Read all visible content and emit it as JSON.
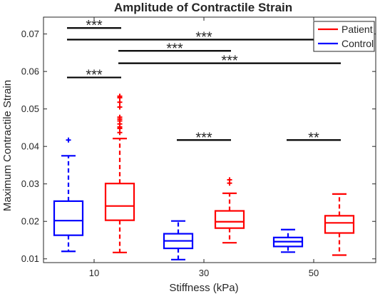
{
  "chart_data": {
    "type": "box",
    "title": "Amplitude of Contractile Strain",
    "xlabel": "Stiffness (kPa)",
    "ylabel": "Maximum Contractile Strain",
    "ylim": [
      0.009,
      0.0745
    ],
    "yticks": [
      "0.01",
      "0.02",
      "0.03",
      "0.04",
      "0.05",
      "0.06",
      "0.07"
    ],
    "yvalues": [
      0.01,
      0.02,
      0.03,
      0.04,
      0.05,
      0.06,
      0.07
    ],
    "categories": [
      "10",
      "30",
      "50"
    ],
    "legend": {
      "position": "top-right",
      "entries": [
        "Patient",
        "Control"
      ]
    },
    "series": [
      {
        "name": "Control",
        "color": "#0000ff",
        "boxes": [
          {
            "category": "10",
            "whisker_low": 0.012,
            "q1": 0.0163,
            "median": 0.0202,
            "q3": 0.0254,
            "whisker_high": 0.0375,
            "outliers": [
              0.0417
            ]
          },
          {
            "category": "30",
            "whisker_low": 0.0098,
            "q1": 0.0128,
            "median": 0.0148,
            "q3": 0.0167,
            "whisker_high": 0.0201,
            "outliers": []
          },
          {
            "category": "50",
            "whisker_low": 0.0118,
            "q1": 0.0133,
            "median": 0.0146,
            "q3": 0.0157,
            "whisker_high": 0.0178,
            "outliers": []
          }
        ]
      },
      {
        "name": "Patient",
        "color": "#ff0000",
        "boxes": [
          {
            "category": "10",
            "whisker_low": 0.0117,
            "q1": 0.0203,
            "median": 0.0241,
            "q3": 0.0301,
            "whisker_high": 0.0421,
            "outliers": [
              0.0534,
              0.053,
              0.0518,
              0.0505,
              0.0478,
              0.0473,
              0.0468,
              0.046,
              0.0452,
              0.0448,
              0.0437
            ]
          },
          {
            "category": "30",
            "whisker_low": 0.0143,
            "q1": 0.0182,
            "median": 0.0199,
            "q3": 0.0228,
            "whisker_high": 0.0275,
            "outliers": [
              0.0311,
              0.0302
            ]
          },
          {
            "category": "50",
            "whisker_low": 0.011,
            "q1": 0.0169,
            "median": 0.0196,
            "q3": 0.0215,
            "whisker_high": 0.0273,
            "outliers": []
          }
        ]
      }
    ],
    "significance": [
      {
        "label": "***",
        "from": 0,
        "to": 1,
        "y": 0.0716
      },
      {
        "label": "***",
        "from": 0,
        "to": 5,
        "y": 0.0685
      },
      {
        "label": "***",
        "from": 1,
        "to": 3,
        "y": 0.0655
      },
      {
        "label": "***",
        "from": 1,
        "to": 5,
        "y": 0.0622
      },
      {
        "label": "***",
        "from": 0,
        "to": 1,
        "y": 0.0584
      },
      {
        "label": "***",
        "from": 2,
        "to": 3,
        "y": 0.0417
      },
      {
        "label": "**",
        "from": 4,
        "to": 5,
        "y": 0.0417
      }
    ]
  }
}
